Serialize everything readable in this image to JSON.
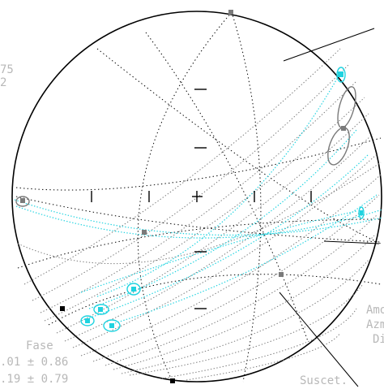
{
  "labels": {
    "top_left_1": "75",
    "top_left_2": "2",
    "fase": "Fase",
    "value_1": ".01 ± 0.86",
    "value_2": ".19 ± 0.79",
    "right_1": "Amo",
    "right_2": "Azm",
    "right_3": "Dip",
    "bottom_right": "Suscet."
  },
  "colors": {
    "background": "#ffffff",
    "primitive": "#000000",
    "gray_arc": "#7a7a7a",
    "cyan": "#1fd3e0",
    "marker_gray": "#7a7a7a",
    "marker_black": "#000000",
    "label": "#b8b8b8"
  },
  "stereonet": {
    "type": "equal-area stereonet",
    "tick_marks": "cross at center with radial ticks"
  }
}
